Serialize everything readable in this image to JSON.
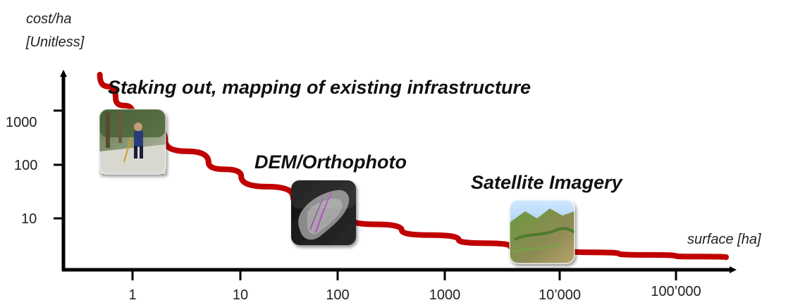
{
  "chart_data": {
    "type": "line",
    "title": "",
    "ylabel_line1": "cost/ha",
    "ylabel_line2": "[Unitless]",
    "xlabel": "surface [ha]",
    "x_scale": "log",
    "y_scale": "log",
    "x_ticks": [
      "1",
      "10",
      "100",
      "1000",
      "10’000",
      "100’000"
    ],
    "y_ticks": [
      "1000",
      "100",
      "10"
    ],
    "series": [
      {
        "color": "#c00000",
        "x": [
          0.5,
          0.7,
          1,
          2,
          5,
          10,
          30,
          100,
          300,
          1000,
          3000,
          10000,
          30000,
          100000,
          300000
        ],
        "y": [
          5000,
          1700,
          900,
          280,
          110,
          60,
          25,
          10,
          6,
          4,
          3,
          2.5,
          2.2,
          2,
          1.9
        ]
      }
    ],
    "annotations": [
      {
        "text": "Staking out, mapping of existing infrastructure",
        "icon": "person-surveying-photo-icon"
      },
      {
        "text": "DEM/Orthophoto",
        "icon": "dem-orthophoto-icon"
      },
      {
        "text": "Satellite Imagery",
        "icon": "satellite-terrain-icon"
      }
    ],
    "grid": false,
    "legend": "none"
  }
}
